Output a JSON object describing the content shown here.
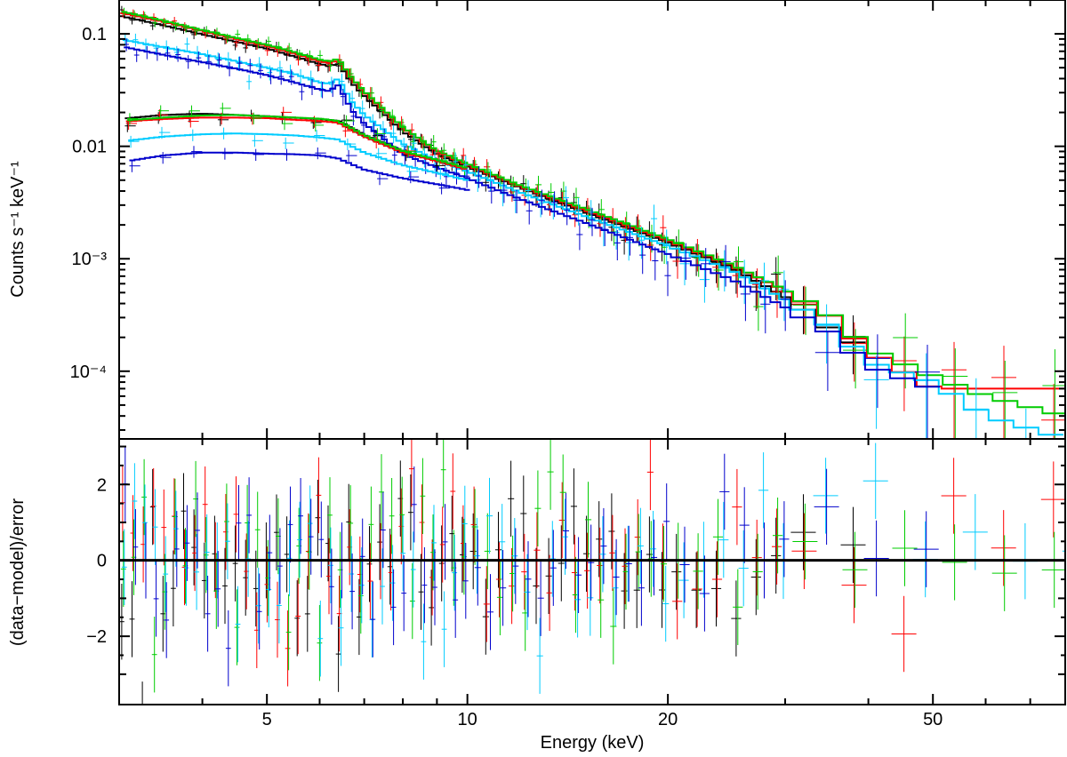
{
  "chart_data": [
    {
      "panel": "spectrum",
      "type": "scatter",
      "ylabel": "Counts s⁻¹ keV⁻¹",
      "xscale": "log",
      "yscale": "log",
      "xlim": [
        3.0,
        79.0
      ],
      "ylim": [
        2.5e-05,
        0.2
      ],
      "y_ticks": [
        {
          "value": 0.1,
          "label": "0.1"
        },
        {
          "value": 0.01,
          "label": "0.01"
        },
        {
          "value": 0.001,
          "label": "10⁻³"
        },
        {
          "value": 0.0001,
          "label": "10⁻⁴"
        }
      ],
      "grid": false,
      "legend": "none",
      "series": [
        {
          "color": "#000000",
          "group": "high",
          "points": [
            [
              3.0,
              0.145
            ],
            [
              3.5,
              0.119
            ],
            [
              4.0,
              0.099
            ],
            [
              4.5,
              0.085
            ],
            [
              5.0,
              0.074
            ],
            [
              5.5,
              0.063
            ],
            [
              6.0,
              0.054
            ],
            [
              6.2,
              0.052
            ],
            [
              6.4,
              0.054
            ],
            [
              6.7,
              0.037
            ],
            [
              7.0,
              0.028
            ],
            [
              8.0,
              0.0135
            ],
            [
              9.0,
              0.0085
            ],
            [
              10.0,
              0.0066
            ],
            [
              12.0,
              0.0043
            ],
            [
              15.0,
              0.0026
            ],
            [
              20.0,
              0.0014
            ],
            [
              25.0,
              0.00083
            ],
            [
              30.0,
              0.00046
            ],
            [
              35.0,
              0.00024
            ],
            [
              40.0,
              0.00015
            ]
          ]
        },
        {
          "color": "#ff0000",
          "group": "high",
          "points": [
            [
              3.0,
              0.155
            ],
            [
              3.5,
              0.128
            ],
            [
              4.0,
              0.106
            ],
            [
              4.5,
              0.09
            ],
            [
              5.0,
              0.078
            ],
            [
              5.5,
              0.067
            ],
            [
              6.0,
              0.057
            ],
            [
              6.2,
              0.055
            ],
            [
              6.4,
              0.058
            ],
            [
              6.7,
              0.04
            ],
            [
              7.0,
              0.03
            ],
            [
              8.0,
              0.0145
            ],
            [
              9.0,
              0.009
            ],
            [
              10.0,
              0.0068
            ],
            [
              12.0,
              0.0044
            ],
            [
              15.0,
              0.0027
            ],
            [
              20.0,
              0.00145
            ],
            [
              25.0,
              0.00086
            ],
            [
              30.0,
              0.00052
            ],
            [
              35.0,
              0.00031
            ],
            [
              40.0,
              0.00015
            ],
            [
              50.0,
              7e-05
            ],
            [
              79.0,
              7e-05
            ]
          ]
        },
        {
          "color": "#00cc00",
          "group": "high",
          "points": [
            [
              3.0,
              0.16
            ],
            [
              3.5,
              0.131
            ],
            [
              4.0,
              0.108
            ],
            [
              4.5,
              0.092
            ],
            [
              5.0,
              0.08
            ],
            [
              5.5,
              0.069
            ],
            [
              6.0,
              0.059
            ],
            [
              6.2,
              0.057
            ],
            [
              6.4,
              0.06
            ],
            [
              6.7,
              0.041
            ],
            [
              7.0,
              0.031
            ],
            [
              8.0,
              0.0148
            ],
            [
              9.0,
              0.0092
            ],
            [
              10.0,
              0.007
            ],
            [
              12.0,
              0.0045
            ],
            [
              15.0,
              0.0028
            ],
            [
              20.0,
              0.0015
            ],
            [
              25.0,
              0.00088
            ],
            [
              30.0,
              0.00053
            ],
            [
              35.0,
              0.00032
            ],
            [
              40.0,
              0.00016
            ],
            [
              50.0,
              9e-05
            ],
            [
              60.0,
              6e-05
            ],
            [
              79.0,
              4e-05
            ]
          ]
        },
        {
          "color": "#00ccff",
          "group": "high",
          "points": [
            [
              3.0,
              0.09
            ],
            [
              3.5,
              0.076
            ],
            [
              4.0,
              0.066
            ],
            [
              4.5,
              0.057
            ],
            [
              5.0,
              0.05
            ],
            [
              5.5,
              0.044
            ],
            [
              6.0,
              0.037
            ],
            [
              6.2,
              0.036
            ],
            [
              6.4,
              0.04
            ],
            [
              6.7,
              0.025
            ],
            [
              7.0,
              0.019
            ],
            [
              8.0,
              0.0105
            ],
            [
              9.0,
              0.0075
            ],
            [
              10.0,
              0.006
            ],
            [
              12.0,
              0.0039
            ],
            [
              15.0,
              0.0024
            ],
            [
              20.0,
              0.0013
            ],
            [
              25.0,
              0.00078
            ],
            [
              30.0,
              0.00043
            ],
            [
              35.0,
              0.00025
            ],
            [
              40.0,
              0.00012
            ],
            [
              50.0,
              8e-05
            ],
            [
              60.0,
              4e-05
            ],
            [
              79.0,
              2.5e-05
            ]
          ]
        },
        {
          "color": "#0000cc",
          "group": "high",
          "points": [
            [
              3.0,
              0.078
            ],
            [
              3.5,
              0.065
            ],
            [
              4.0,
              0.056
            ],
            [
              4.5,
              0.049
            ],
            [
              5.0,
              0.043
            ],
            [
              5.5,
              0.037
            ],
            [
              6.0,
              0.032
            ],
            [
              6.2,
              0.031
            ],
            [
              6.4,
              0.035
            ],
            [
              6.7,
              0.021
            ],
            [
              7.0,
              0.016
            ],
            [
              8.0,
              0.0085
            ],
            [
              9.0,
              0.0065
            ],
            [
              10.0,
              0.0052
            ],
            [
              12.0,
              0.0034
            ],
            [
              15.0,
              0.0021
            ],
            [
              20.0,
              0.0011
            ],
            [
              25.0,
              0.00065
            ],
            [
              30.0,
              0.00037
            ],
            [
              35.0,
              0.00022
            ],
            [
              40.0,
              0.00011
            ],
            [
              50.0,
              7e-05
            ]
          ]
        },
        {
          "color": "#000000",
          "group": "low",
          "points": [
            [
              3.0,
              0.0175
            ],
            [
              3.5,
              0.019
            ],
            [
              4.0,
              0.0195
            ],
            [
              4.5,
              0.019
            ],
            [
              5.0,
              0.0185
            ],
            [
              5.5,
              0.018
            ],
            [
              6.0,
              0.0175
            ],
            [
              6.4,
              0.0168
            ],
            [
              7.0,
              0.0125
            ],
            [
              8.0,
              0.009
            ],
            [
              9.0,
              0.0075
            ],
            [
              10.0,
              0.0063
            ]
          ]
        },
        {
          "color": "#ff0000",
          "group": "low",
          "points": [
            [
              3.0,
              0.0165
            ],
            [
              3.5,
              0.0175
            ],
            [
              4.0,
              0.018
            ],
            [
              4.5,
              0.018
            ],
            [
              5.0,
              0.0178
            ],
            [
              5.5,
              0.0172
            ],
            [
              6.0,
              0.0168
            ],
            [
              6.4,
              0.0162
            ],
            [
              7.0,
              0.0122
            ],
            [
              8.0,
              0.0088
            ],
            [
              9.0,
              0.0074
            ],
            [
              10.0,
              0.0062
            ]
          ]
        },
        {
          "color": "#00cc00",
          "group": "low",
          "points": [
            [
              3.0,
              0.0168
            ],
            [
              3.5,
              0.018
            ],
            [
              4.0,
              0.0188
            ],
            [
              4.5,
              0.019
            ],
            [
              5.0,
              0.0185
            ],
            [
              5.5,
              0.018
            ],
            [
              6.0,
              0.0176
            ],
            [
              6.4,
              0.0168
            ],
            [
              7.0,
              0.0126
            ],
            [
              8.0,
              0.0091
            ],
            [
              9.0,
              0.0076
            ],
            [
              10.0,
              0.0064
            ]
          ]
        },
        {
          "color": "#00ccff",
          "group": "low",
          "points": [
            [
              3.0,
              0.011
            ],
            [
              3.5,
              0.0122
            ],
            [
              4.0,
              0.0128
            ],
            [
              4.5,
              0.013
            ],
            [
              5.0,
              0.0128
            ],
            [
              5.5,
              0.0125
            ],
            [
              6.0,
              0.012
            ],
            [
              6.4,
              0.0115
            ],
            [
              7.0,
              0.0088
            ],
            [
              8.0,
              0.0068
            ],
            [
              9.0,
              0.0058
            ],
            [
              10.0,
              0.005
            ]
          ]
        },
        {
          "color": "#0000cc",
          "group": "low",
          "points": [
            [
              3.0,
              0.0072
            ],
            [
              3.5,
              0.0083
            ],
            [
              4.0,
              0.0088
            ],
            [
              4.5,
              0.0088
            ],
            [
              5.0,
              0.0086
            ],
            [
              5.5,
              0.0085
            ],
            [
              6.0,
              0.0083
            ],
            [
              6.4,
              0.0078
            ],
            [
              7.0,
              0.0062
            ],
            [
              8.0,
              0.0052
            ],
            [
              9.0,
              0.0046
            ],
            [
              10.0,
              0.0041
            ]
          ]
        }
      ]
    },
    {
      "panel": "residuals",
      "type": "scatter",
      "xlabel": "Energy (keV)",
      "ylabel": "(data−model)/error",
      "xscale": "log",
      "xlim": [
        3.0,
        79.0
      ],
      "ylim": [
        -3.8,
        3.2
      ],
      "x_ticks": [
        {
          "value": 5,
          "label": "5"
        },
        {
          "value": 10,
          "label": "10"
        },
        {
          "value": 20,
          "label": "20"
        },
        {
          "value": 50,
          "label": "50"
        }
      ],
      "y_ticks": [
        {
          "value": 2,
          "label": "2"
        },
        {
          "value": 0,
          "label": "0"
        },
        {
          "value": -2,
          "label": "−2"
        }
      ],
      "zero_line": 0,
      "residual_spread_sigma": 1.0,
      "grid": false,
      "legend": "none",
      "series": [
        {
          "color": "#000000"
        },
        {
          "color": "#ff0000"
        },
        {
          "color": "#00cc00"
        },
        {
          "color": "#00ccff"
        },
        {
          "color": "#0000cc"
        }
      ]
    }
  ]
}
